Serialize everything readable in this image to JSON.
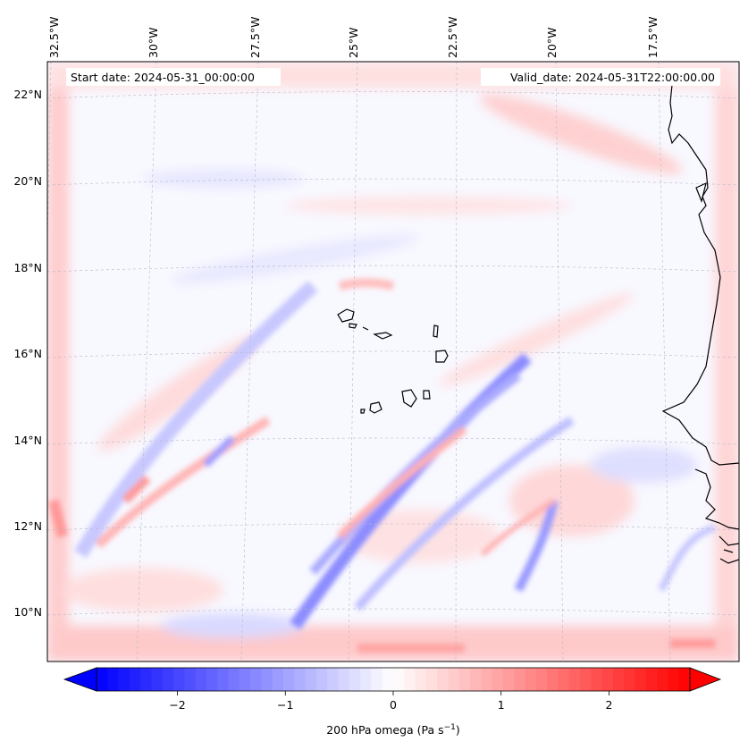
{
  "header": {
    "start_date": "Start date: 2024-05-31_00:00:00",
    "valid_date": "Valid_date: 2024-05-31T22:00:00.00"
  },
  "axes": {
    "lon_labels": [
      "32.5°W",
      "30°W",
      "27.5°W",
      "25°W",
      "22.5°W",
      "20°W",
      "17.5°W"
    ],
    "lat_labels": [
      "22°N",
      "20°N",
      "18°N",
      "16°N",
      "14°N",
      "12°N",
      "10°N"
    ]
  },
  "colorbar": {
    "label": "200 hPa omega (Pa s",
    "label_sup": "−1",
    "label_close": ")",
    "ticks": [
      "−2",
      "−1",
      "0",
      "1",
      "2"
    ],
    "tick_values": [
      -2,
      -1,
      0,
      1,
      2
    ],
    "range": [
      -2.75,
      2.75
    ],
    "cmap": "bwr",
    "neg_color": "#0000ff",
    "mid_color": "#ffffff",
    "pos_color": "#ff0000"
  },
  "map": {
    "variable": "200 hPa omega",
    "gridlines": true
  }
}
